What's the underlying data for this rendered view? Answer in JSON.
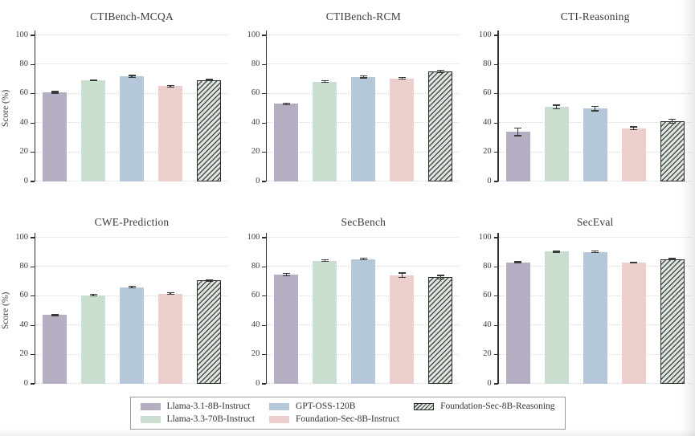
{
  "figure": {
    "background": "#ffffff",
    "ylabel": "Score (%)"
  },
  "chart_data": {
    "type": "bar",
    "layout": "2x3-grid",
    "ylabel": "Score (%)",
    "ylim": [
      0,
      100
    ],
    "yticks": [
      0,
      20,
      40,
      60,
      80,
      100
    ],
    "grid": "dotted-horizontal",
    "error_bars": true,
    "legend_position": "bottom-center-boxed",
    "series": [
      {
        "name": "Llama-3.1-8B-Instruct",
        "color": "#b5adc2",
        "hatch": false
      },
      {
        "name": "Llama-3.3-70B-Instruct",
        "color": "#c9decf",
        "hatch": false
      },
      {
        "name": "GPT-OSS-120B",
        "color": "#b4c8d9",
        "hatch": false
      },
      {
        "name": "Foundation-Sec-8B-Instruct",
        "color": "#eccecc",
        "hatch": false
      },
      {
        "name": "Foundation-Sec-8B-Reasoning",
        "color": "#dfe6e0",
        "hatch": true,
        "hatch_color": "#47504a"
      }
    ],
    "subplots": [
      {
        "title": "CTIBench-MCQA",
        "values": [
          61.0,
          69.3,
          71.8,
          65.2,
          69.3
        ],
        "errors": [
          0.5,
          0.4,
          0.7,
          0.5,
          0.5
        ]
      },
      {
        "title": "CTIBench-RCM",
        "values": [
          53.1,
          68.4,
          71.5,
          70.5,
          75.5
        ],
        "errors": [
          0.5,
          0.5,
          0.6,
          0.5,
          0.7
        ]
      },
      {
        "title": "CTI-Reasoning",
        "values": [
          33.9,
          50.9,
          49.8,
          36.3,
          41.3
        ],
        "errors": [
          2.5,
          1.3,
          1.5,
          1.0,
          1.4
        ]
      },
      {
        "title": "CWE-Prediction",
        "values": [
          47.2,
          60.7,
          66.2,
          61.7,
          70.7
        ],
        "errors": [
          0.5,
          0.4,
          0.5,
          0.5,
          0.5
        ]
      },
      {
        "title": "SecBench",
        "values": [
          74.8,
          84.3,
          85.4,
          74.3,
          73.0
        ],
        "errors": [
          0.7,
          0.5,
          0.5,
          1.5,
          1.2
        ]
      },
      {
        "title": "SecEval",
        "values": [
          83.1,
          90.5,
          90.3,
          83.0,
          85.3
        ],
        "errors": [
          0.4,
          0.4,
          0.5,
          0.4,
          0.4
        ]
      }
    ]
  },
  "colors": {
    "axis": "#2f2f2f",
    "grid_line": "#d8d8d8",
    "error_bar": "#3a3a3a",
    "tick_label": "#3f3f3f",
    "title": "#3a3a3a",
    "legend_border": "#9a9a9a"
  }
}
